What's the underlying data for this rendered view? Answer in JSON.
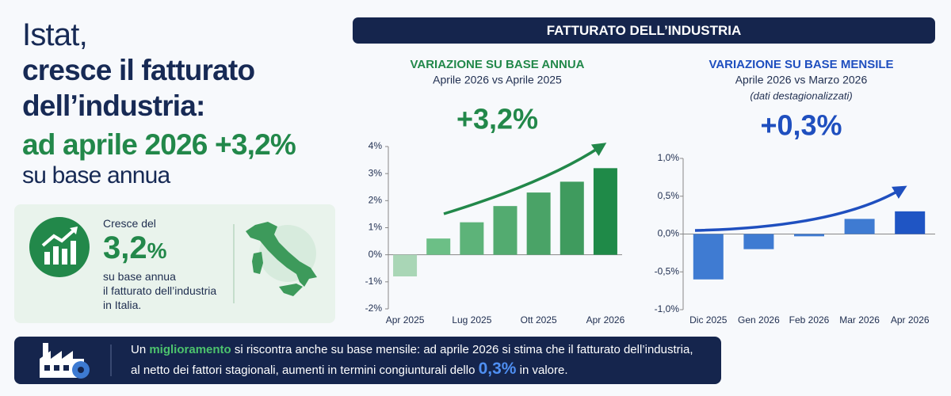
{
  "headline": {
    "lines": [
      "Istat,",
      "cresce il fatturato",
      "dell’industria:",
      "ad aprile 2026 +3,2%",
      "su base annua"
    ]
  },
  "highlight": {
    "intro": "Cresce del",
    "value": "3,2",
    "unit": "%",
    "lines": [
      "su base annua",
      "il fatturato dell’industria",
      "in Italia."
    ]
  },
  "banner": "FATTURATO DELL’INDUSTRIA",
  "footer": {
    "line1": [
      "Un ",
      "miglioramento",
      " si riscontra anche su base mensile: ad aprile 2026 si stima che il fatturato dell’industria,"
    ],
    "line2": [
      "al netto dei fattori stagionali, aumenti in termini congiunturali dello ",
      "0,3%",
      " in valore."
    ]
  },
  "chart_data": [
    {
      "type": "bar",
      "title": "VARIAZIONE SU BASE ANNUA",
      "subtitle": "Aprile 2026 vs Aprile 2025",
      "headline": "+3,2%",
      "categories": [
        "Apr 2025",
        null,
        "Lug 2025",
        null,
        "Ott 2025",
        null,
        "Apr 2026"
      ],
      "values": [
        -0.8,
        0.6,
        1.2,
        1.8,
        2.3,
        2.7,
        3.2
      ],
      "colors": [
        "#a9d6b6",
        "#6cbf86",
        "#5db379",
        "#53ab70",
        "#4aa367",
        "#3f9b5e",
        "#1f8a48"
      ],
      "ylim": [
        -2,
        4
      ],
      "yticks": [
        {
          "value": -2,
          "label": "-2%"
        },
        {
          "value": -1,
          "label": "-1%"
        },
        {
          "value": 0,
          "label": "0%"
        },
        {
          "value": 1,
          "label": "1%"
        },
        {
          "value": 2,
          "label": "2%"
        },
        {
          "value": 3,
          "label": "3%"
        },
        {
          "value": 4,
          "label": "4%"
        }
      ],
      "grid": false
    },
    {
      "type": "bar",
      "title": "VARIAZIONE SU BASE MENSILE",
      "subtitle": "Aprile 2026 vs Marzo 2026",
      "note": "(dati destagionalizzati)",
      "headline": "+0,3%",
      "categories": [
        "Dic 2025",
        "Gen 2026",
        "Feb 2026",
        "Mar 2026",
        "Apr 2026"
      ],
      "values": [
        -0.6,
        -0.2,
        -0.03,
        0.2,
        0.3
      ],
      "colors": [
        "#3f7bd2",
        "#3f7bd2",
        "#3f7bd2",
        "#3f7bd2",
        "#1f55c4"
      ],
      "ylim": [
        -1,
        1
      ],
      "yticks": [
        {
          "value": -1,
          "label": "-1,0%"
        },
        {
          "value": -0.5,
          "label": "-0,5%"
        },
        {
          "value": 0,
          "label": "0,0%"
        },
        {
          "value": 0.5,
          "label": "0,5%"
        },
        {
          "value": 1,
          "label": "1,0%"
        }
      ],
      "grid": false
    }
  ]
}
